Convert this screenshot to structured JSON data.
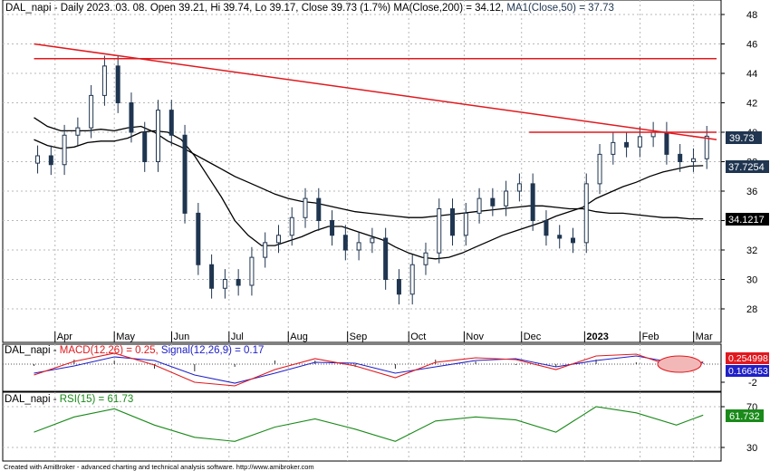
{
  "panes": {
    "price": {
      "header": {
        "prefix": "DAL_napi - Daily 2023. 03. 08. Open 39.21, Hi 39.74, Lo 39.17, Close 39.73 (1.7%) MA(Close,200) = 34.12, ",
        "ma50": "MA1(Close,50) = 37.73"
      },
      "y_ticks": [
        "48",
        "46",
        "44",
        "42",
        "40",
        "38",
        "36",
        "34",
        "32",
        "30",
        "28"
      ],
      "x_ticks": [
        "Apr",
        "May",
        "Jun",
        "Jul",
        "Aug",
        "Sep",
        "Oct",
        "Nov",
        "Dec",
        "2023",
        "Feb",
        "Mar"
      ],
      "labels": {
        "close": "39.73",
        "ma50": "37.7254",
        "ma200": "34.1217"
      }
    },
    "macd": {
      "header": {
        "prefix": "DAL_napi - ",
        "macd": "MACD(12,26) = 0.25, ",
        "signal": "Signal(12,26,9) = 0.17"
      },
      "y_ticks": [
        "-2"
      ],
      "labels": {
        "macd": "0.254998",
        "signal": "0.166453"
      }
    },
    "rsi": {
      "header": {
        "prefix": "DAL_napi - ",
        "rsi": "RSI(15) = 61.73"
      },
      "y_ticks": [
        "70",
        "30"
      ],
      "labels": {
        "rsi": "61.732"
      }
    }
  },
  "footer": "Created with AmiBroker - advanced charting and technical analysis software. http://www.amibroker.com",
  "colors": {
    "candle": "#1f3550",
    "trend": "#e0191e",
    "ma": "#000000",
    "macd": "#e0191e",
    "signal": "#2020c8",
    "rsi": "#1a8a1a",
    "grid": "#b8b8b8"
  },
  "chart_data": [
    {
      "type": "candlestick",
      "title": "DAL_napi - Daily",
      "ylim": [
        27,
        49
      ],
      "x": [
        "2022-03-21",
        "2022-03-28",
        "2022-04-04",
        "2022-04-11",
        "2022-04-18",
        "2022-04-25",
        "2022-05-02",
        "2022-05-09",
        "2022-05-16",
        "2022-05-23",
        "2022-05-30",
        "2022-06-06",
        "2022-06-13",
        "2022-06-20",
        "2022-06-27",
        "2022-07-04",
        "2022-07-11",
        "2022-07-18",
        "2022-07-25",
        "2022-08-01",
        "2022-08-08",
        "2022-08-15",
        "2022-08-22",
        "2022-08-29",
        "2022-09-05",
        "2022-09-12",
        "2022-09-19",
        "2022-09-26",
        "2022-10-03",
        "2022-10-10",
        "2022-10-17",
        "2022-10-24",
        "2022-10-31",
        "2022-11-07",
        "2022-11-14",
        "2022-11-21",
        "2022-11-28",
        "2022-12-05",
        "2022-12-12",
        "2022-12-19",
        "2022-12-26",
        "2023-01-02",
        "2023-01-09",
        "2023-01-16",
        "2023-01-23",
        "2023-01-30",
        "2023-02-06",
        "2023-02-13",
        "2023-02-20",
        "2023-02-27",
        "2023-03-06"
      ],
      "close": [
        38.4,
        37.8,
        39.8,
        40.3,
        42.5,
        44.5,
        42.0,
        40.0,
        38.0,
        41.5,
        39.8,
        34.5,
        31.0,
        29.4,
        30.0,
        29.6,
        31.5,
        32.5,
        33.0,
        34.2,
        35.5,
        34.0,
        33.0,
        32.0,
        32.5,
        32.8,
        30.0,
        29.0,
        31.0,
        31.8,
        34.8,
        33.0,
        34.5,
        35.5,
        35.0,
        36.0,
        36.5,
        34.0,
        33.0,
        32.8,
        32.5,
        36.5,
        38.5,
        39.3,
        39.0,
        39.7,
        40.0,
        38.5,
        38.0,
        38.2,
        39.73
      ],
      "ma_close_200": [
        41.0,
        40.4,
        40.1,
        40.1,
        40.1,
        40.2,
        40.1,
        40.3,
        40.4,
        40.0,
        39.4,
        39.0,
        38.5,
        38.0,
        37.5,
        37.0,
        36.6,
        36.2,
        35.8,
        35.5,
        35.3,
        35.2,
        35.0,
        34.8,
        34.6,
        34.5,
        34.4,
        34.3,
        34.2,
        34.2,
        34.3,
        34.4,
        34.5,
        34.6,
        34.7,
        34.8,
        34.9,
        35.0,
        35.0,
        34.9,
        34.8,
        34.8,
        34.6,
        34.5,
        34.5,
        34.4,
        34.3,
        34.2,
        34.2,
        34.12,
        34.12
      ],
      "ma1_close_50": [
        39.5,
        39.1,
        38.9,
        39.0,
        39.3,
        39.4,
        39.4,
        39.6,
        40.0,
        40.1,
        40.0,
        39.5,
        38.4,
        37.0,
        35.6,
        34.0,
        33.0,
        32.3,
        32.3,
        32.6,
        32.9,
        33.3,
        33.6,
        33.6,
        33.3,
        33.0,
        32.7,
        32.2,
        31.8,
        31.5,
        31.4,
        31.5,
        31.8,
        32.2,
        32.6,
        33.0,
        33.3,
        33.6,
        33.9,
        34.3,
        34.6,
        34.9,
        35.5,
        35.9,
        36.3,
        36.6,
        37.0,
        37.3,
        37.5,
        37.7,
        37.73
      ],
      "trendlines": [
        {
          "from": [
            "2022-03-21",
            46.0
          ],
          "to": [
            "2023-03-13",
            39.5
          ]
        }
      ],
      "horizontal_lines": [
        {
          "from": "2022-03-21",
          "to": "2023-03-13",
          "y": 45.0
        },
        {
          "from": "2022-12-05",
          "to": "2023-03-13",
          "y": 40.0
        }
      ]
    },
    {
      "type": "line",
      "title": "MACD(12,26)",
      "ylim": [
        -3,
        1.5
      ],
      "x": [
        "2022-03-21",
        "2022-04-11",
        "2022-05-02",
        "2022-05-23",
        "2022-06-13",
        "2022-07-04",
        "2022-07-25",
        "2022-08-15",
        "2022-09-05",
        "2022-09-26",
        "2022-10-17",
        "2022-11-07",
        "2022-11-28",
        "2022-12-19",
        "2023-01-09",
        "2023-01-30",
        "2023-02-20",
        "2023-03-06"
      ],
      "series": [
        {
          "name": "MACD(12,26)",
          "values": [
            -1.2,
            0.3,
            1.2,
            -0.1,
            -2.0,
            -2.4,
            -0.6,
            0.6,
            -0.2,
            -1.5,
            0.2,
            0.7,
            0.5,
            -0.6,
            0.9,
            1.1,
            -0.4,
            0.25
          ]
        },
        {
          "name": "Signal(12,26,9)",
          "values": [
            -1.0,
            -0.2,
            0.8,
            0.4,
            -1.2,
            -2.1,
            -1.0,
            0.2,
            0.1,
            -1.0,
            -0.3,
            0.4,
            0.6,
            -0.3,
            0.4,
            0.9,
            0.1,
            0.17
          ]
        }
      ]
    },
    {
      "type": "line",
      "title": "RSI(15)",
      "ylim": [
        20,
        80
      ],
      "x": [
        "2022-03-21",
        "2022-04-11",
        "2022-05-02",
        "2022-05-23",
        "2022-06-13",
        "2022-07-04",
        "2022-07-25",
        "2022-08-15",
        "2022-09-05",
        "2022-09-26",
        "2022-10-17",
        "2022-11-07",
        "2022-11-28",
        "2022-12-19",
        "2023-01-09",
        "2023-01-30",
        "2023-02-20",
        "2023-03-06"
      ],
      "series": [
        {
          "name": "RSI(15)",
          "values": [
            45,
            60,
            68,
            52,
            40,
            36,
            50,
            58,
            48,
            36,
            56,
            60,
            57,
            45,
            70,
            64,
            52,
            61.73
          ]
        }
      ]
    }
  ]
}
